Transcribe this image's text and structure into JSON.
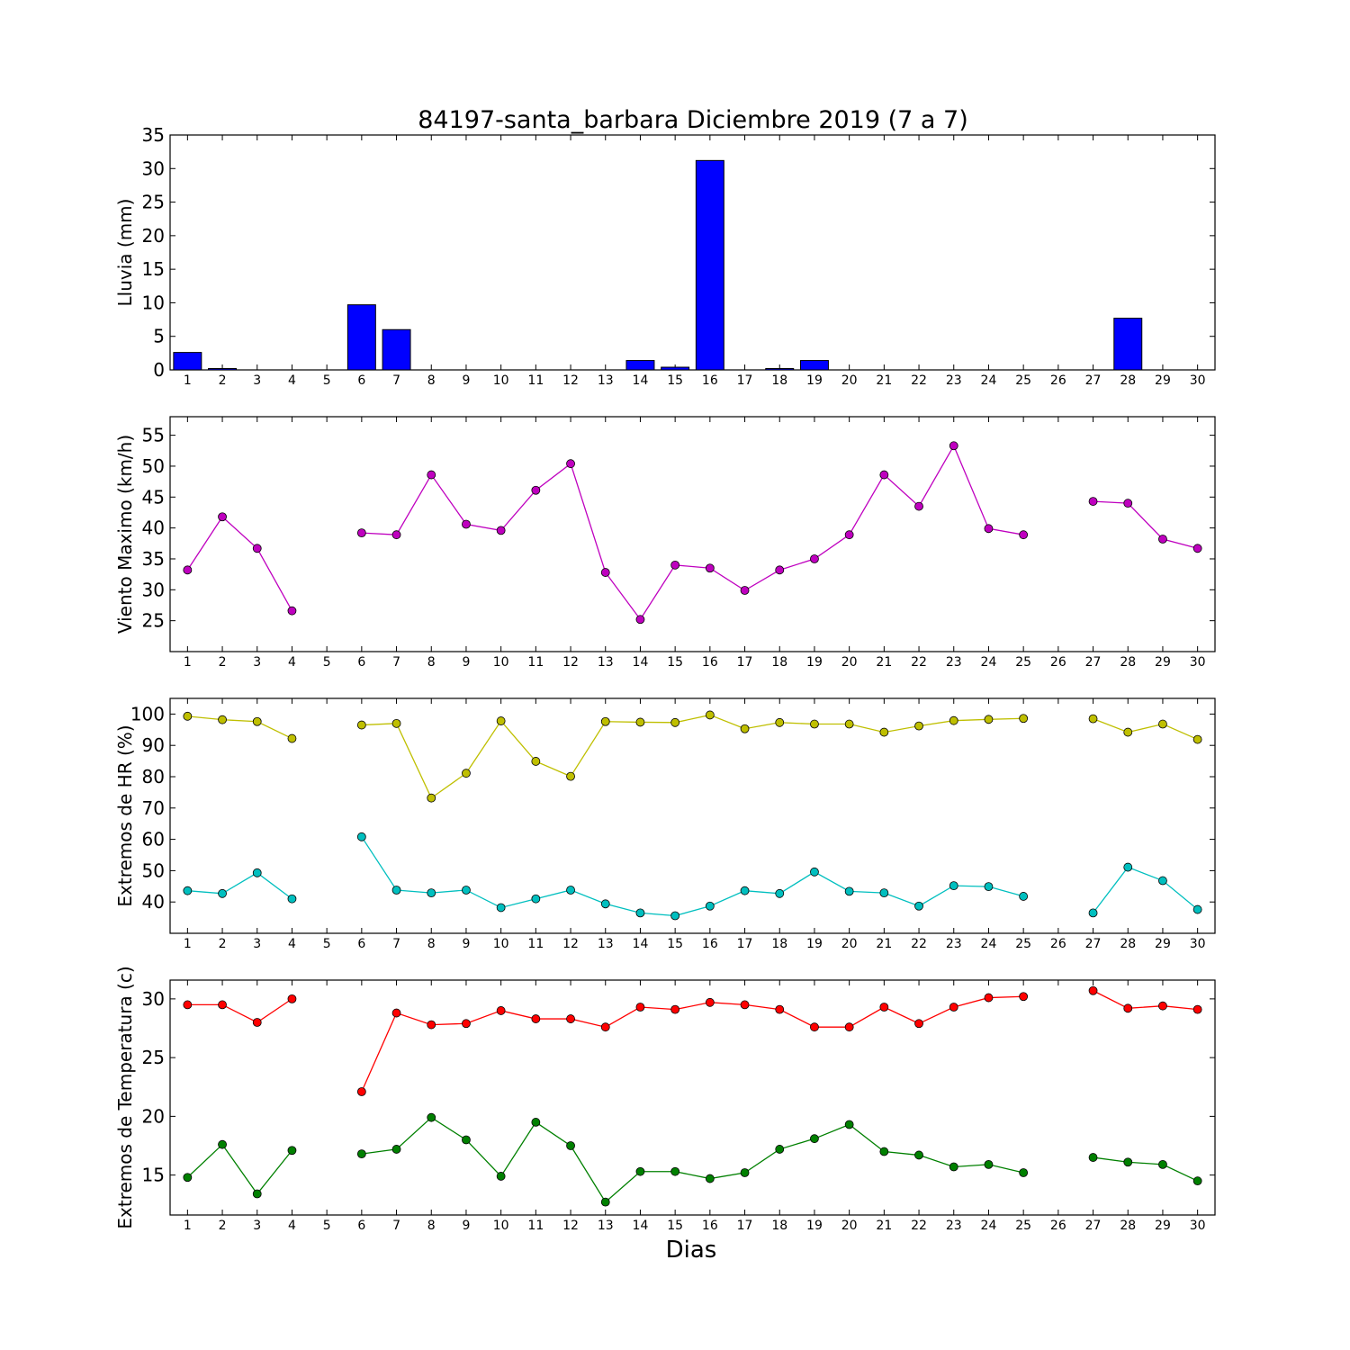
{
  "chart_data": {
    "title": "84197-santa_barbara Diciembre 2019  (7 a 7)",
    "xlabel": "Dias",
    "days": [
      1,
      2,
      3,
      4,
      5,
      6,
      7,
      8,
      9,
      10,
      11,
      12,
      13,
      14,
      15,
      16,
      17,
      18,
      19,
      20,
      21,
      22,
      23,
      24,
      25,
      26,
      27,
      28,
      29,
      30
    ],
    "panels": [
      {
        "id": "lluvia",
        "type": "bar",
        "ylabel": "Lluvia (mm)",
        "ylim": [
          0,
          35
        ],
        "yticks": [
          0,
          5,
          10,
          15,
          20,
          25,
          30,
          35
        ],
        "series": [
          {
            "color": "#0000ff",
            "values": [
              2.6,
              0.2,
              0,
              0,
              0,
              9.7,
              6.0,
              0,
              0,
              0,
              0,
              0,
              0,
              1.4,
              0.4,
              31.2,
              0,
              0.2,
              1.4,
              0,
              0,
              0,
              0,
              0,
              0,
              0,
              0,
              7.7,
              0,
              0
            ]
          }
        ]
      },
      {
        "id": "viento",
        "type": "line",
        "ylabel": "Viento Maximo (km/h)",
        "ylim": [
          20,
          58
        ],
        "yticks": [
          25,
          30,
          35,
          40,
          45,
          50,
          55
        ],
        "series": [
          {
            "color": "#bf00bf",
            "values": [
              33.2,
              41.8,
              36.7,
              26.6,
              null,
              39.2,
              38.9,
              48.6,
              40.6,
              39.6,
              46.1,
              50.4,
              32.8,
              25.2,
              34.0,
              33.5,
              29.9,
              33.2,
              35.0,
              38.9,
              48.6,
              43.5,
              53.3,
              39.9,
              38.9,
              null,
              44.3,
              44.0,
              38.2,
              36.7
            ]
          }
        ]
      },
      {
        "id": "hr",
        "type": "line",
        "ylabel": "Extremos de HR (%)",
        "ylim": [
          30,
          105
        ],
        "yticks": [
          40,
          50,
          60,
          70,
          80,
          90,
          100
        ],
        "series": [
          {
            "color": "#bfbf00",
            "values": [
              99.3,
              98.2,
              97.6,
              92.2,
              null,
              96.5,
              97.0,
              73.2,
              81.1,
              97.8,
              84.9,
              80.1,
              97.6,
              97.4,
              97.3,
              99.7,
              95.3,
              97.3,
              96.8,
              96.8,
              94.2,
              96.2,
              97.9,
              98.3,
              98.6,
              null,
              98.5,
              94.2,
              96.8,
              91.9
            ]
          },
          {
            "color": "#00bfbf",
            "values": [
              43.6,
              42.7,
              49.3,
              41.0,
              null,
              60.8,
              43.8,
              42.9,
              43.8,
              38.2,
              41.0,
              43.8,
              39.4,
              36.5,
              35.6,
              38.7,
              43.6,
              42.7,
              49.6,
              43.4,
              42.9,
              38.7,
              45.2,
              44.9,
              41.8,
              null,
              36.5,
              51.1,
              46.8,
              37.6
            ]
          }
        ]
      },
      {
        "id": "temperatura",
        "type": "line",
        "ylabel": "Extremos de Temperatura (c)",
        "ylim": [
          11.6,
          31.6
        ],
        "yticks": [
          15,
          20,
          25,
          30
        ],
        "series": [
          {
            "color": "#ff0000",
            "values": [
              29.5,
              29.5,
              28.0,
              30.0,
              null,
              22.1,
              28.8,
              27.8,
              27.9,
              29.0,
              28.3,
              28.3,
              27.6,
              29.3,
              29.1,
              29.7,
              29.5,
              29.1,
              27.6,
              27.6,
              29.3,
              27.9,
              29.3,
              30.1,
              30.2,
              null,
              30.7,
              29.2,
              29.4,
              29.1
            ]
          },
          {
            "color": "#008000",
            "values": [
              14.8,
              17.6,
              13.4,
              17.1,
              null,
              16.8,
              17.2,
              19.9,
              18.0,
              14.9,
              19.5,
              17.5,
              12.7,
              15.3,
              15.3,
              14.7,
              15.2,
              17.2,
              18.1,
              19.3,
              17.0,
              16.7,
              15.7,
              15.9,
              15.2,
              null,
              16.5,
              16.1,
              15.9,
              14.5
            ]
          }
        ]
      }
    ]
  }
}
